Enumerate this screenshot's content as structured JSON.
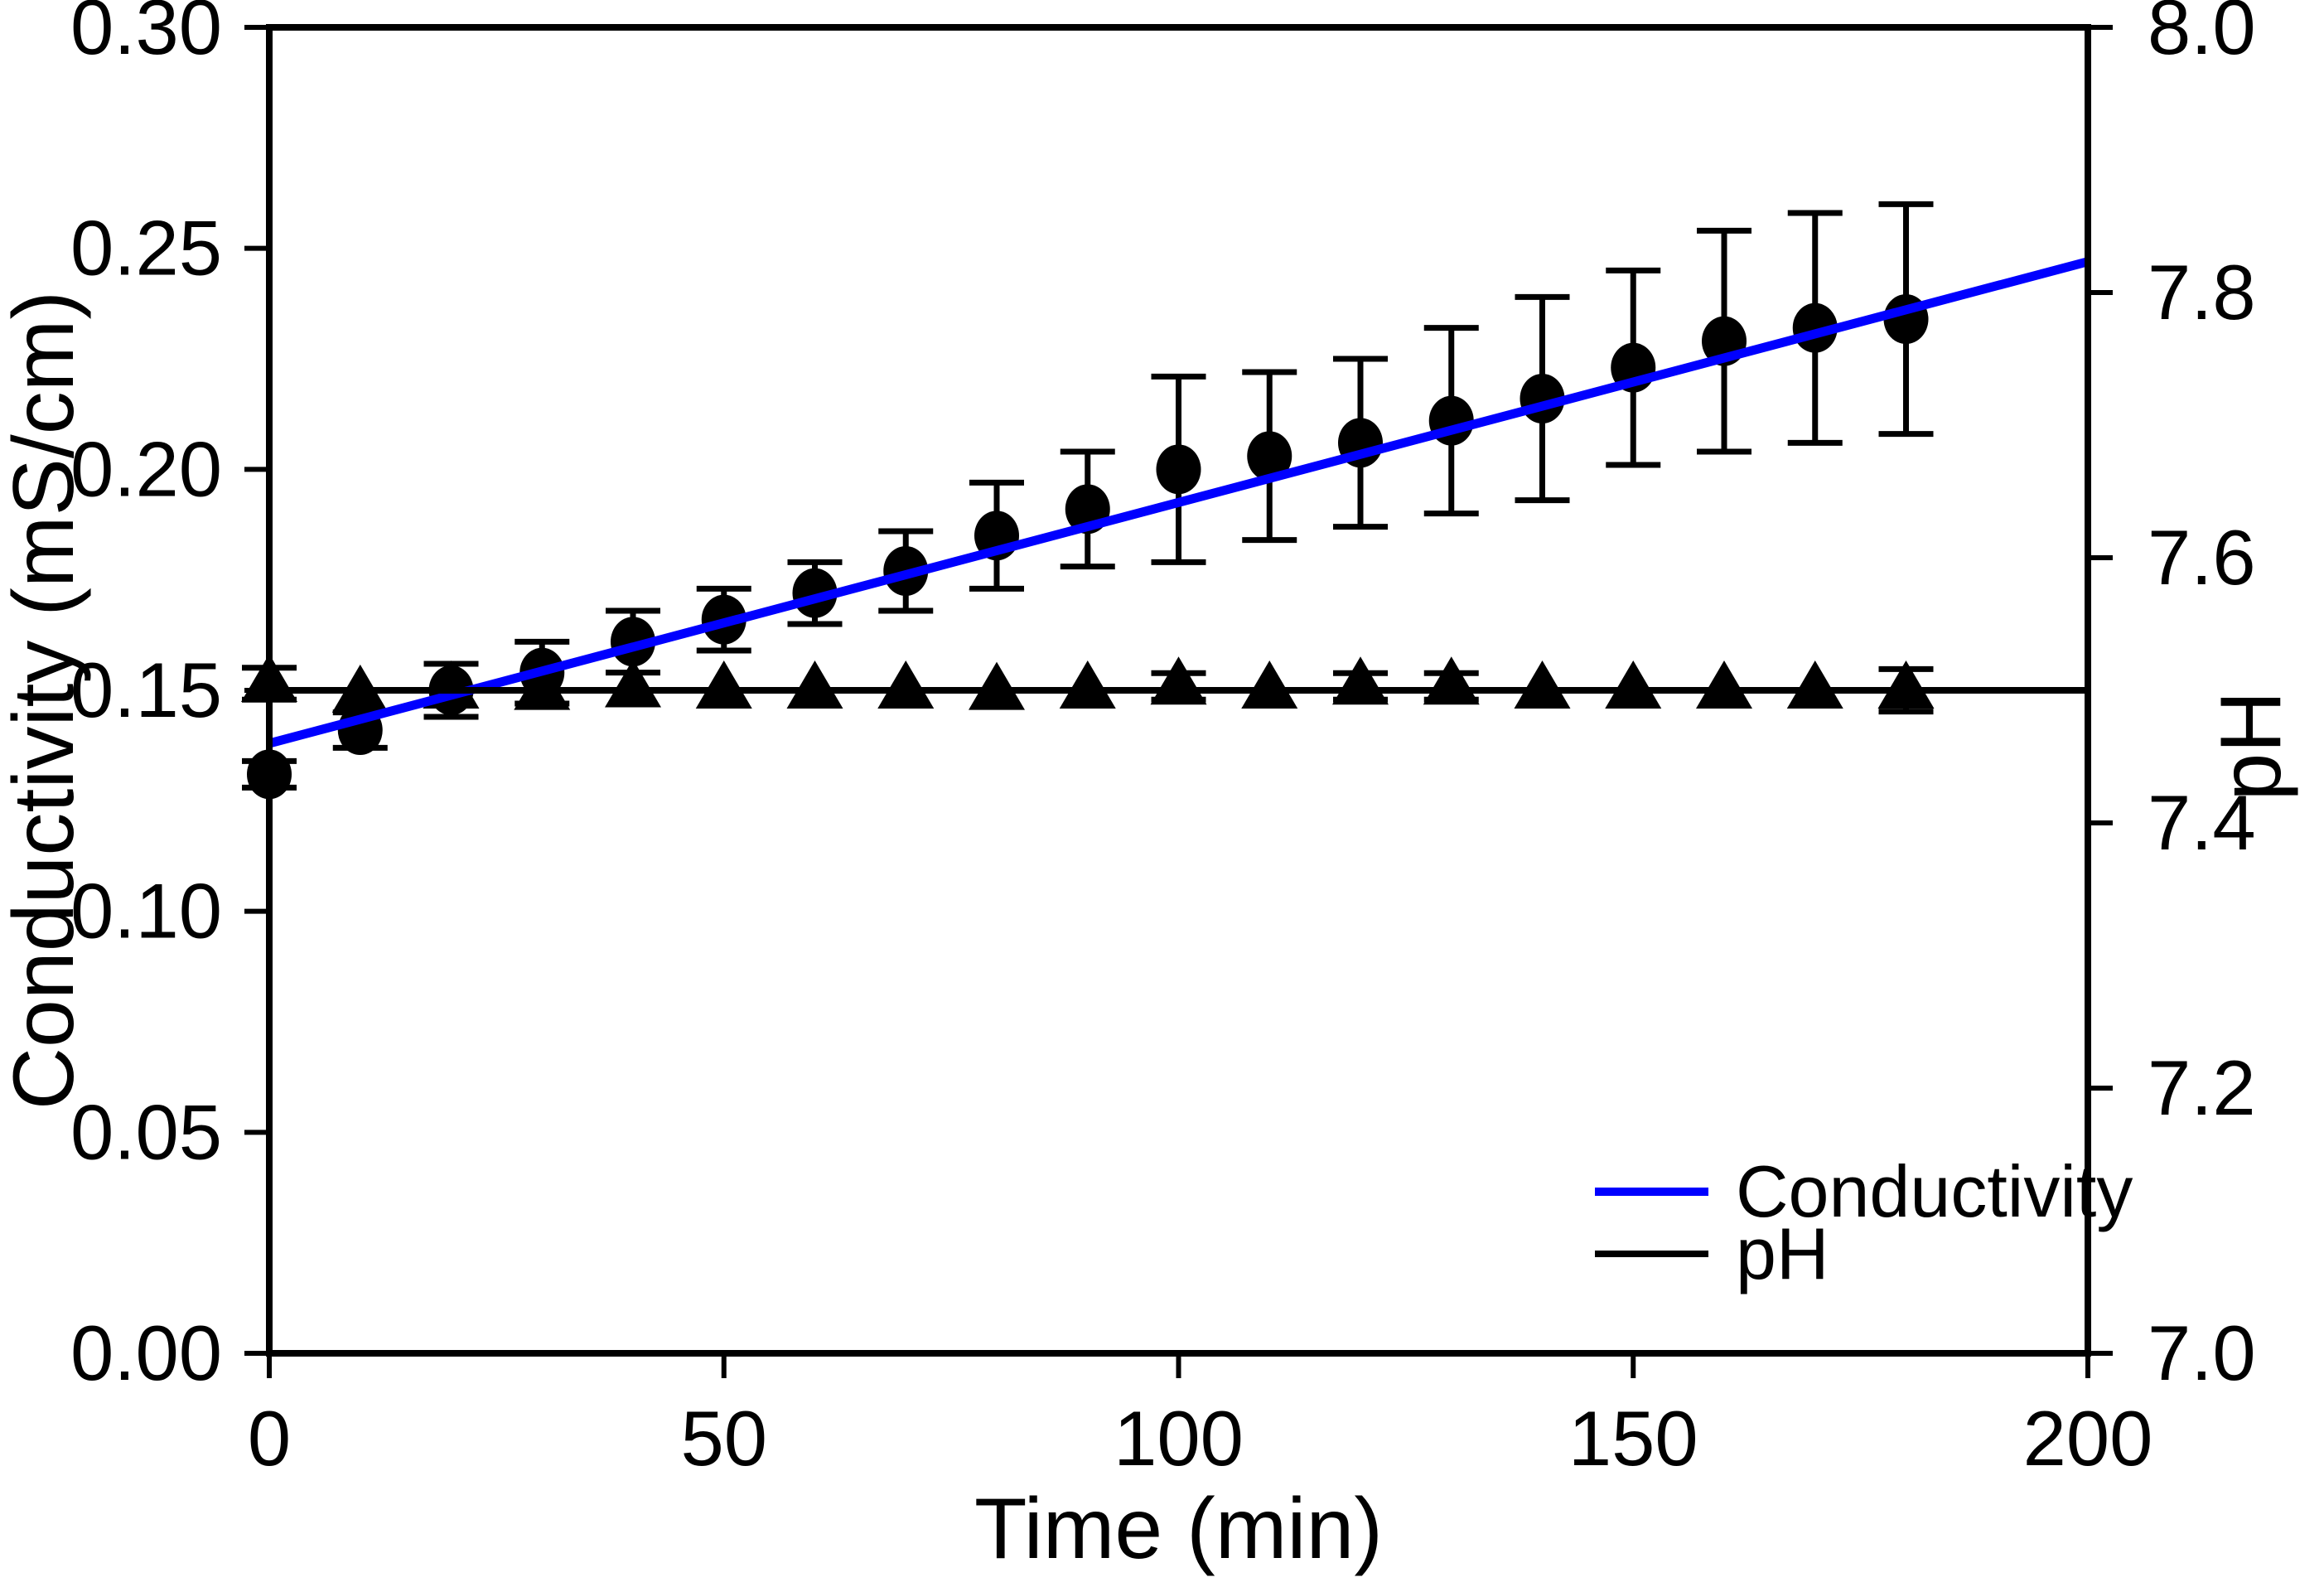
{
  "figure": {
    "background": "#ffffff",
    "axis_color": "#000000",
    "accent_blue": "#0000ff"
  },
  "chart_data": {
    "type": "scatter",
    "title": "",
    "xlabel": "Time (min)",
    "ylabel_left": "Conductivity (mS/cm)",
    "ylabel_right": "pH",
    "xlim": [
      0,
      200
    ],
    "ylim_left": [
      0.0,
      0.3
    ],
    "ylim_right": [
      7.0,
      8.0
    ],
    "grid": false,
    "x_ticks": [
      0,
      50,
      100,
      150,
      200
    ],
    "x_tick_labels": [
      "0",
      "50",
      "100",
      "150",
      "200"
    ],
    "y_ticks_left": [
      0.0,
      0.05,
      0.1,
      0.15,
      0.2,
      0.25,
      0.3
    ],
    "y_tick_labels_left": [
      "0.00",
      "0.05",
      "0.10",
      "0.15",
      "0.20",
      "0.25",
      "0.30"
    ],
    "y_ticks_right": [
      7.0,
      7.2,
      7.4,
      7.6,
      7.8,
      8.0
    ],
    "y_tick_labels_right": [
      "7.0",
      "7.2",
      "7.4",
      "7.6",
      "7.8",
      "8.0"
    ],
    "series": [
      {
        "name": "Conductivity",
        "axis": "left",
        "marker": "circle",
        "color": "#000000",
        "x": [
          0,
          10,
          20,
          30,
          40,
          50,
          60,
          70,
          80,
          90,
          100,
          110,
          120,
          130,
          140,
          150,
          160,
          170,
          180
        ],
        "y": [
          0.131,
          0.141,
          0.15,
          0.154,
          0.161,
          0.166,
          0.172,
          0.177,
          0.185,
          0.191,
          0.2,
          0.203,
          0.206,
          0.211,
          0.216,
          0.223,
          0.229,
          0.232,
          0.234
        ],
        "yerr": [
          0.003,
          0.004,
          0.006,
          0.007,
          0.007,
          0.007,
          0.007,
          0.009,
          0.012,
          0.013,
          0.021,
          0.019,
          0.019,
          0.021,
          0.023,
          0.022,
          0.025,
          0.026,
          0.026
        ]
      },
      {
        "name": "pH",
        "axis": "right",
        "marker": "triangle",
        "color": "#000000",
        "x": [
          0,
          10,
          20,
          30,
          40,
          50,
          60,
          70,
          80,
          90,
          100,
          110,
          120,
          130,
          140,
          150,
          160,
          170,
          180
        ],
        "y": [
          7.505,
          7.497,
          7.5,
          7.499,
          7.501,
          7.5,
          7.5,
          7.5,
          7.499,
          7.5,
          7.503,
          7.5,
          7.503,
          7.503,
          7.5,
          7.5,
          7.5,
          7.5,
          7.5
        ],
        "yerr": [
          0.012,
          0.0,
          0.0,
          0.0,
          0.0,
          0.0,
          0.0,
          0.0,
          0.0,
          0.0,
          0.01,
          0.0,
          0.01,
          0.01,
          0.0,
          0.0,
          0.0,
          0.0,
          0.016
        ]
      }
    ],
    "fit_lines": [
      {
        "name": "conductivity-fit",
        "axis": "left",
        "color": "#0000ff",
        "x0": 0,
        "y0": 0.138,
        "x1": 200,
        "y1": 0.247
      },
      {
        "name": "ph-fit",
        "axis": "right",
        "color": "#000000",
        "x0": 0,
        "y0": 7.5,
        "x1": 200,
        "y1": 7.5
      }
    ],
    "legend": {
      "position": "lower-right",
      "entries": [
        {
          "label": "Conductivity",
          "color": "#0000ff",
          "symbol": "line"
        },
        {
          "label": "pH",
          "color": "#000000",
          "symbol": "line"
        }
      ]
    }
  }
}
